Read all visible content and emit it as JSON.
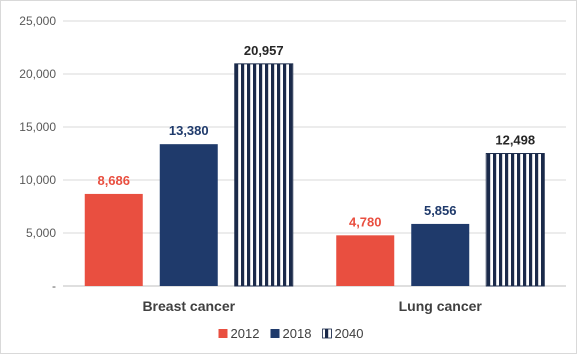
{
  "chart_data": {
    "type": "bar",
    "categories": [
      "Breast cancer",
      "Lung cancer"
    ],
    "series": [
      {
        "name": "2012",
        "values": [
          8686,
          4780
        ],
        "color": "#e94f40",
        "pattern": "solid",
        "label_color": "#e94f40"
      },
      {
        "name": "2018",
        "values": [
          13380,
          5856
        ],
        "color": "#1f3a6b",
        "pattern": "solid",
        "label_color": "#1f3a6b"
      },
      {
        "name": "2040",
        "values": [
          20957,
          12498
        ],
        "color": "#1b2a4a",
        "pattern": "vertical-stripes",
        "label_color": "#262626"
      }
    ],
    "data_labels": [
      [
        "8,686",
        "4,780"
      ],
      [
        "13,380",
        "5,856"
      ],
      [
        "20,957",
        "12,498"
      ]
    ],
    "ylim": [
      0,
      25000
    ],
    "yticks": [
      0,
      5000,
      10000,
      15000,
      20000,
      25000
    ],
    "ytick_labels": [
      "-",
      "5,000",
      "10,000",
      "15,000",
      "20,000",
      "25,000"
    ],
    "gridlines": true,
    "legend_position": "bottom",
    "title": "",
    "xlabel": "",
    "ylabel": ""
  }
}
